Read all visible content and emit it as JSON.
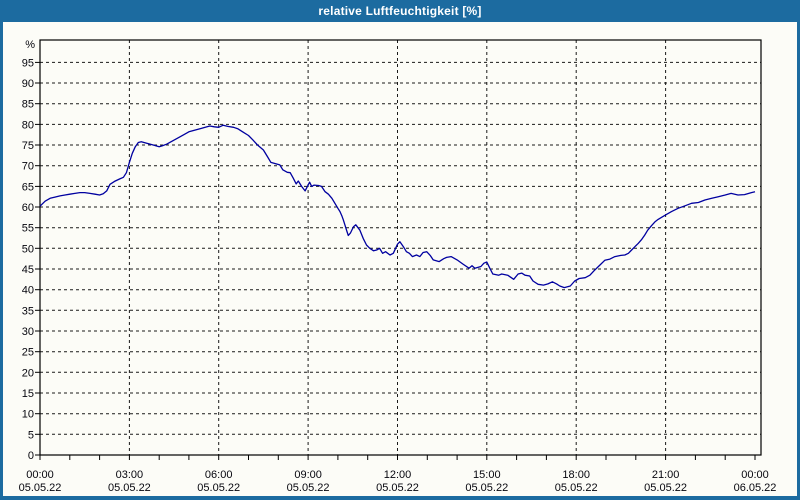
{
  "window": {
    "title": "relative Luftfeuchtigkeit [%]"
  },
  "colors": {
    "frame_blue": "#1c6ba0",
    "window_bg": "#fcfcf7",
    "plot_bg": "#fcfcf7",
    "line_blue": "#0000a0",
    "grid_black": "#1a1a1a",
    "axis_black": "#000000",
    "label_text": "#06060e",
    "title_text": "#ffffff"
  },
  "chart_data": {
    "type": "line",
    "title": "relative Luftfeuchtigkeit [%]",
    "xlabel": "",
    "ylabel": "%",
    "ylim": [
      0,
      100.4
    ],
    "ytick_step": 5,
    "yticks": [
      0,
      5,
      10,
      15,
      20,
      25,
      30,
      35,
      40,
      45,
      50,
      55,
      60,
      65,
      70,
      75,
      80,
      85,
      90,
      95
    ],
    "grid": "dashed",
    "legend": "none",
    "x_hours_range": [
      0,
      24.2
    ],
    "minor_xtick_every_hours": 1,
    "x_axis": {
      "labels": [
        {
          "hour": 0,
          "time": "00:00",
          "date": "05.05.22"
        },
        {
          "hour": 3,
          "time": "03:00",
          "date": "05.05.22"
        },
        {
          "hour": 6,
          "time": "06:00",
          "date": "05.05.22"
        },
        {
          "hour": 9,
          "time": "09:00",
          "date": "05.05.22"
        },
        {
          "hour": 12,
          "time": "12:00",
          "date": "05.05.22"
        },
        {
          "hour": 15,
          "time": "15:00",
          "date": "05.05.22"
        },
        {
          "hour": 18,
          "time": "18:00",
          "date": "05.05.22"
        },
        {
          "hour": 21,
          "time": "21:00",
          "date": "05.05.22"
        },
        {
          "hour": 24,
          "time": "00:00",
          "date": "06.05.22"
        }
      ]
    },
    "series": [
      {
        "name": "relative Luftfeuchtigkeit",
        "unit": "%",
        "points": [
          [
            0,
            60.2
          ],
          [
            0.17,
            61.4
          ],
          [
            0.34,
            62.1
          ],
          [
            0.5,
            62.4
          ],
          [
            0.67,
            62.7
          ],
          [
            0.84,
            62.9
          ],
          [
            1.0,
            63.1
          ],
          [
            1.17,
            63.3
          ],
          [
            1.34,
            63.5
          ],
          [
            1.5,
            63.5
          ],
          [
            1.68,
            63.3
          ],
          [
            1.85,
            63.1
          ],
          [
            2.0,
            62.9
          ],
          [
            2.12,
            63.2
          ],
          [
            2.24,
            63.9
          ],
          [
            2.35,
            65.5
          ],
          [
            2.5,
            66.2
          ],
          [
            2.68,
            66.8
          ],
          [
            2.8,
            67.2
          ],
          [
            2.9,
            68.3
          ],
          [
            3.0,
            70.8
          ],
          [
            3.1,
            73.0
          ],
          [
            3.2,
            74.6
          ],
          [
            3.3,
            75.6
          ],
          [
            3.4,
            75.8
          ],
          [
            3.6,
            75.4
          ],
          [
            3.8,
            75.0
          ],
          [
            4.0,
            74.6
          ],
          [
            4.1,
            74.8
          ],
          [
            4.25,
            75.2
          ],
          [
            4.5,
            76.2
          ],
          [
            4.7,
            77.0
          ],
          [
            4.85,
            77.6
          ],
          [
            5.0,
            78.2
          ],
          [
            5.2,
            78.6
          ],
          [
            5.4,
            79.0
          ],
          [
            5.55,
            79.3
          ],
          [
            5.7,
            79.6
          ],
          [
            5.85,
            79.4
          ],
          [
            6.0,
            79.3
          ],
          [
            6.15,
            79.8
          ],
          [
            6.3,
            79.5
          ],
          [
            6.5,
            79.3
          ],
          [
            6.65,
            78.9
          ],
          [
            6.8,
            78.2
          ],
          [
            7.0,
            77.3
          ],
          [
            7.15,
            76.2
          ],
          [
            7.3,
            75.0
          ],
          [
            7.5,
            73.8
          ],
          [
            7.65,
            72.0
          ],
          [
            7.75,
            70.8
          ],
          [
            7.9,
            70.5
          ],
          [
            8.05,
            70.2
          ],
          [
            8.15,
            69.0
          ],
          [
            8.3,
            68.4
          ],
          [
            8.4,
            68.3
          ],
          [
            8.5,
            67.0
          ],
          [
            8.6,
            65.6
          ],
          [
            8.67,
            66.3
          ],
          [
            8.78,
            65.0
          ],
          [
            8.9,
            63.9
          ],
          [
            9.0,
            65.3
          ],
          [
            9.05,
            66.0
          ],
          [
            9.12,
            65.0
          ],
          [
            9.2,
            65.3
          ],
          [
            9.35,
            65.2
          ],
          [
            9.45,
            65.0
          ],
          [
            9.57,
            63.7
          ],
          [
            9.68,
            63.1
          ],
          [
            9.8,
            62.1
          ],
          [
            9.9,
            60.9
          ],
          [
            10.0,
            59.7
          ],
          [
            10.07,
            58.9
          ],
          [
            10.13,
            57.9
          ],
          [
            10.18,
            56.9
          ],
          [
            10.24,
            55.6
          ],
          [
            10.3,
            54.2
          ],
          [
            10.35,
            53.1
          ],
          [
            10.42,
            53.7
          ],
          [
            10.52,
            55.2
          ],
          [
            10.6,
            55.7
          ],
          [
            10.74,
            54.4
          ],
          [
            10.85,
            52.4
          ],
          [
            10.96,
            50.8
          ],
          [
            11.07,
            50.0
          ],
          [
            11.2,
            49.4
          ],
          [
            11.3,
            49.6
          ],
          [
            11.4,
            50.0
          ],
          [
            11.5,
            48.8
          ],
          [
            11.6,
            49.2
          ],
          [
            11.75,
            48.4
          ],
          [
            11.86,
            48.8
          ],
          [
            12.0,
            51.0
          ],
          [
            12.08,
            51.6
          ],
          [
            12.2,
            50.4
          ],
          [
            12.3,
            49.2
          ],
          [
            12.4,
            48.8
          ],
          [
            12.5,
            48.0
          ],
          [
            12.64,
            48.4
          ],
          [
            12.75,
            48.0
          ],
          [
            12.86,
            49.0
          ],
          [
            12.98,
            49.2
          ],
          [
            13.1,
            48.3
          ],
          [
            13.2,
            47.2
          ],
          [
            13.4,
            46.8
          ],
          [
            13.55,
            47.5
          ],
          [
            13.65,
            47.8
          ],
          [
            13.8,
            48.0
          ],
          [
            14.0,
            47.2
          ],
          [
            14.2,
            46.2
          ],
          [
            14.4,
            45.2
          ],
          [
            14.5,
            45.8
          ],
          [
            14.6,
            45.2
          ],
          [
            14.8,
            45.6
          ],
          [
            14.9,
            46.4
          ],
          [
            15.0,
            46.7
          ],
          [
            15.1,
            45.2
          ],
          [
            15.2,
            43.8
          ],
          [
            15.4,
            43.5
          ],
          [
            15.5,
            43.8
          ],
          [
            15.7,
            43.5
          ],
          [
            15.9,
            42.5
          ],
          [
            16.05,
            43.8
          ],
          [
            16.17,
            44.0
          ],
          [
            16.28,
            43.5
          ],
          [
            16.44,
            43.3
          ],
          [
            16.55,
            42.1
          ],
          [
            16.72,
            41.3
          ],
          [
            16.9,
            41.1
          ],
          [
            17.05,
            41.4
          ],
          [
            17.2,
            41.9
          ],
          [
            17.34,
            41.4
          ],
          [
            17.45,
            40.9
          ],
          [
            17.6,
            40.5
          ],
          [
            17.8,
            40.9
          ],
          [
            17.95,
            42.1
          ],
          [
            18.1,
            42.7
          ],
          [
            18.3,
            42.9
          ],
          [
            18.46,
            43.5
          ],
          [
            18.6,
            44.6
          ],
          [
            18.8,
            46.0
          ],
          [
            18.96,
            47.1
          ],
          [
            19.13,
            47.4
          ],
          [
            19.3,
            48.0
          ],
          [
            19.5,
            48.3
          ],
          [
            19.63,
            48.4
          ],
          [
            19.75,
            48.8
          ],
          [
            19.86,
            49.6
          ],
          [
            19.97,
            50.4
          ],
          [
            20.08,
            51.2
          ],
          [
            20.2,
            52.2
          ],
          [
            20.3,
            53.2
          ],
          [
            20.4,
            54.4
          ],
          [
            20.53,
            55.5
          ],
          [
            20.64,
            56.4
          ],
          [
            20.75,
            57.0
          ],
          [
            20.86,
            57.5
          ],
          [
            21.0,
            58.1
          ],
          [
            21.2,
            58.9
          ],
          [
            21.42,
            59.7
          ],
          [
            21.65,
            60.3
          ],
          [
            21.87,
            60.9
          ],
          [
            22.1,
            61.1
          ],
          [
            22.32,
            61.7
          ],
          [
            22.55,
            62.1
          ],
          [
            22.77,
            62.5
          ],
          [
            23.0,
            62.9
          ],
          [
            23.2,
            63.3
          ],
          [
            23.43,
            62.9
          ],
          [
            23.65,
            63.0
          ],
          [
            23.88,
            63.5
          ],
          [
            24.0,
            63.7
          ]
        ]
      }
    ]
  }
}
